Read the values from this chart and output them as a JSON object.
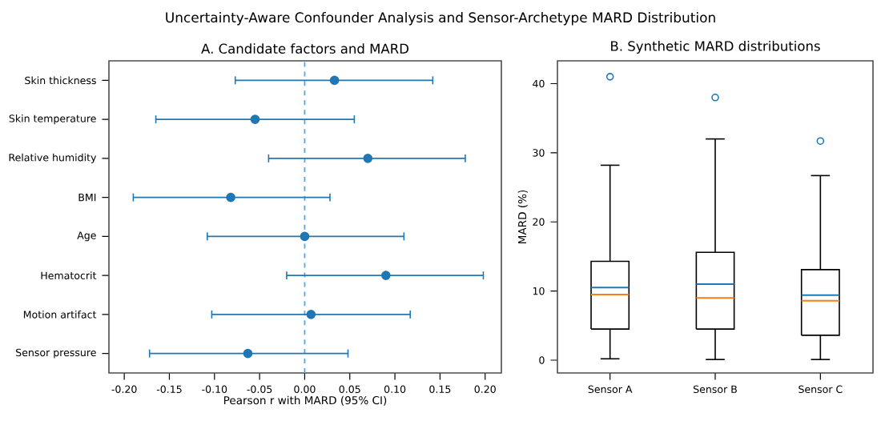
{
  "chart_data": [
    {
      "type": "scatter",
      "orientation": "horizontal",
      "title": "A. Candidate factors and MARD",
      "xlabel": "Pearson r with MARD (95% CI)",
      "annotations": [
        "Uncertainty-Aware Confounder Analysis and Sensor-Archetype MARD Distribution"
      ],
      "categories": [
        "Skin thickness",
        "Skin temperature",
        "Relative humidity",
        "BMI",
        "Age",
        "Hematocrit",
        "Motion artifact",
        "Sensor pressure"
      ],
      "values": [
        0.033,
        -0.055,
        0.07,
        -0.082,
        0.0,
        0.09,
        0.007,
        -0.063
      ],
      "errors": [
        [
          -0.077,
          0.142
        ],
        [
          -0.165,
          0.055
        ],
        [
          -0.04,
          0.178
        ],
        [
          -0.19,
          0.028
        ],
        [
          -0.108,
          0.11
        ],
        [
          -0.02,
          0.198
        ],
        [
          -0.103,
          0.117
        ],
        [
          -0.172,
          0.048
        ]
      ],
      "color": "#1f77b4",
      "marker": "circle",
      "xlim": [
        -0.217,
        0.218
      ],
      "xticks": [
        {
          "value": -0.2,
          "label": "-0.20"
        },
        {
          "value": -0.15,
          "label": "-0.15"
        },
        {
          "value": -0.1,
          "label": "-0.10"
        },
        {
          "value": -0.05,
          "label": "-0.05"
        },
        {
          "value": 0,
          "label": "0.00"
        },
        {
          "value": 0.05,
          "label": "0.05"
        },
        {
          "value": 0.1,
          "label": "0.10"
        },
        {
          "value": 0.15,
          "label": "0.15"
        },
        {
          "value": 0.2,
          "label": "0.20"
        }
      ],
      "ref_lines": [
        {
          "axis": "x",
          "value": 0,
          "color": "#5fa2dd",
          "line_style": "dashed"
        }
      ]
    },
    {
      "type": "box",
      "title": "B. Synthetic MARD distributions",
      "ylabel": "MARD (%)",
      "categories": [
        "Sensor A",
        "Sensor B",
        "Sensor C"
      ],
      "series": [
        {
          "type": "box",
          "color": "#000000",
          "boxes": [
            {
              "low": 0.2,
              "q1": 4.5,
              "median": 9.5,
              "q3": 14.3,
              "high": 28.2,
              "mean": 10.5,
              "outliers": [
                41
              ]
            },
            {
              "low": 0.1,
              "q1": 4.5,
              "median": 9.0,
              "q3": 15.6,
              "high": 32.0,
              "mean": 11.0,
              "outliers": [
                38
              ]
            },
            {
              "low": 0.1,
              "q1": 3.6,
              "median": 8.6,
              "q3": 13.1,
              "high": 26.7,
              "mean": 9.4,
              "outliers": [
                31.7
              ]
            }
          ]
        }
      ],
      "ylim": [
        -1.85,
        43.3
      ],
      "yticks": [
        0,
        10,
        20,
        30,
        40
      ]
    }
  ]
}
